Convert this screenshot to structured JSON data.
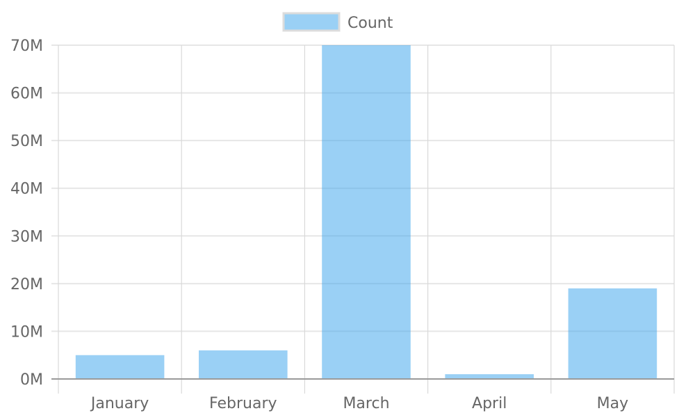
{
  "chart_data": {
    "type": "bar",
    "categories": [
      "January",
      "February",
      "March",
      "April",
      "May"
    ],
    "series": [
      {
        "name": "Count",
        "values": [
          5000000,
          6000000,
          70000000,
          1000000,
          19000000
        ]
      }
    ],
    "y_tick_labels": [
      "0M",
      "10M",
      "20M",
      "30M",
      "40M",
      "50M",
      "60M",
      "70M"
    ],
    "y_ticks": [
      0,
      10000000,
      20000000,
      30000000,
      40000000,
      50000000,
      60000000,
      70000000
    ],
    "ylim": [
      0,
      70000000
    ],
    "grid": true,
    "legend_position": "top-center",
    "title": "",
    "xlabel": "",
    "ylabel": ""
  },
  "colors": {
    "bar_fill": "rgba(54,162,235,0.5)",
    "bar_fill_hex": "#9ACFF3",
    "bar_border": "#36A2EB",
    "grid": "#E6E6E6",
    "vgrid": "#D9D9D9",
    "axis": "#9A9A9A",
    "text": "#666666"
  }
}
